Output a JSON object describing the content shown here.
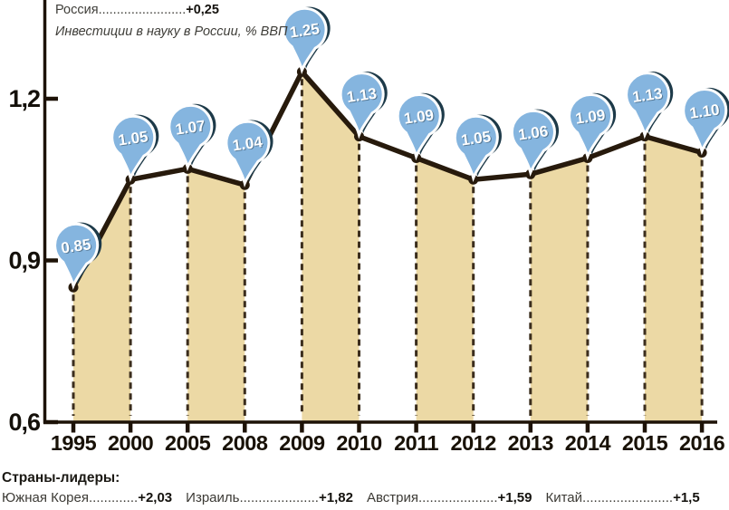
{
  "header": {
    "country_line": {
      "label": "Россия",
      "dots": "........................",
      "value": "+0,25"
    },
    "subtitle": "Инвестиции в науку в России, % ВВП"
  },
  "chart_data": {
    "type": "line",
    "title": "Инвестиции в науку в России, % ВВП",
    "categories": [
      "1995",
      "2000",
      "2005",
      "2008",
      "2009",
      "2010",
      "2011",
      "2012",
      "2013",
      "2014",
      "2015",
      "2016"
    ],
    "values": [
      0.85,
      1.05,
      1.07,
      1.04,
      1.25,
      1.13,
      1.09,
      1.05,
      1.06,
      1.09,
      1.13,
      1.1
    ],
    "pin_labels": [
      "0.85",
      "1.05",
      "1.07",
      "1.04",
      "1.25",
      "1.13",
      "1.09",
      "1.05",
      "1.06",
      "1.09",
      "1.13",
      "1.10"
    ],
    "ylabel": "% ВВП",
    "ylim": [
      0.6,
      1.3
    ],
    "yticks": {
      "values": [
        1.2,
        0.9,
        0.6
      ],
      "labels": [
        "1,2",
        "0,9",
        "0,6"
      ]
    },
    "band_pairs": [
      [
        0,
        1
      ],
      [
        2,
        3
      ],
      [
        4,
        5
      ],
      [
        6,
        7
      ],
      [
        8,
        9
      ],
      [
        10,
        11
      ]
    ],
    "grid": "off",
    "colors": {
      "band": "#ecd9a5",
      "line": "#271a0c",
      "axis": "#1d1207",
      "dash": "#3b2d1d",
      "pin": "#85b5df",
      "pin_shadow": "#1d3a49",
      "pin_ring": "#ffffff",
      "pin_text": "#ffffff"
    }
  },
  "footer": {
    "title": "Страны-лидеры:",
    "leaders": [
      {
        "name": "Южная Корея",
        "dots": ".............",
        "value": "+2,03"
      },
      {
        "name": "Израиль",
        "dots": ".....................",
        "value": "+1,82"
      },
      {
        "name": "Австрия",
        "dots": ".....................",
        "value": "+1,59"
      },
      {
        "name": "Китай",
        "dots": "........................",
        "value": "+1,5"
      }
    ]
  }
}
